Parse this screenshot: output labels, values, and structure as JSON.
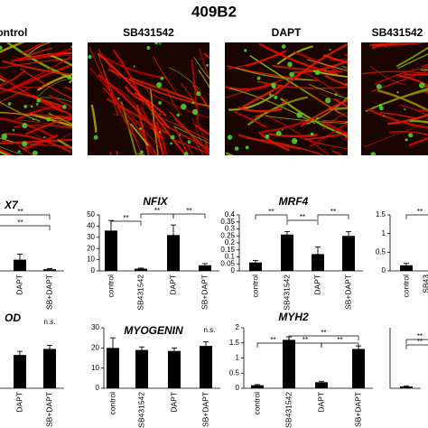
{
  "title": "409B2",
  "panels": [
    "control",
    "SB431542",
    "DAPT",
    "SB431542"
  ],
  "charts": [
    {
      "title": "X7",
      "title_color": "#2e75b6",
      "categories": [
        "DAPT",
        "SB+DAPT"
      ],
      "values": [
        0.2,
        0.03
      ],
      "errors": [
        0.1,
        0.01
      ],
      "ylim": [
        0,
        1
      ],
      "significance": [
        "**",
        "**"
      ]
    },
    {
      "title": "NFIX",
      "title_color": "#2e75b6",
      "categories": [
        "control",
        "SB431542",
        "DAPT",
        "SB+DAPT"
      ],
      "values": [
        36,
        2,
        32,
        5
      ],
      "errors": [
        9,
        0.5,
        9,
        1.5
      ],
      "ylim": [
        0,
        50
      ],
      "yticks": [
        0,
        10,
        20,
        30,
        40,
        50
      ],
      "significance": [
        "**",
        "**",
        "**"
      ]
    },
    {
      "title": "MRF4",
      "title_color": "#c00000",
      "categories": [
        "control",
        "SB431542",
        "DAPT",
        "SB+DAPT"
      ],
      "values": [
        0.06,
        0.26,
        0.12,
        0.25
      ],
      "errors": [
        0.015,
        0.02,
        0.05,
        0.03
      ],
      "ylim": [
        0,
        0.4
      ],
      "yticks": [
        0,
        0.05,
        0.1,
        0.15,
        0.2,
        0.25,
        0.3,
        0.35,
        0.4
      ],
      "significance": [
        "**",
        "**",
        "**"
      ]
    },
    {
      "categories": [
        "control",
        "SB43"
      ],
      "values": [
        0.15,
        0
      ],
      "errors": [
        0.05,
        0
      ],
      "ylim": [
        0,
        1.5
      ],
      "yticks": [
        0,
        0.5,
        1,
        1.5
      ],
      "significance": [
        "**"
      ]
    },
    {
      "title": "OD",
      "title_color": "#000000",
      "categories": [
        "DAPT",
        "SB+DAPT"
      ],
      "values": [
        0.55,
        0.65
      ],
      "errors": [
        0.06,
        0.06
      ],
      "ylim": [
        0,
        1
      ],
      "significance": [
        "n.s."
      ]
    },
    {
      "title": "MYOGENIN",
      "title_color": "#000000",
      "categories": [
        "control",
        "SB431542",
        "DAPT",
        "SB+DAPT"
      ],
      "values": [
        20,
        19,
        18.5,
        21
      ],
      "errors": [
        5,
        1.5,
        1.5,
        2
      ],
      "ylim": [
        0,
        30
      ],
      "yticks": [
        0,
        10,
        20,
        30
      ],
      "significance": [
        "n.s."
      ]
    },
    {
      "title": "MYH2",
      "title_color": "#c00000",
      "categories": [
        "control",
        "SB431542",
        "DAPT",
        "SB+DAPT"
      ],
      "values": [
        0.1,
        1.6,
        0.2,
        1.3
      ],
      "errors": [
        0.02,
        0.1,
        0.03,
        0.1
      ],
      "ylim": [
        0,
        2
      ],
      "yticks": [
        0,
        0.5,
        1,
        1.5,
        2
      ],
      "significance": [
        "**",
        "**",
        "**",
        "**"
      ]
    },
    {
      "values": [
        0.03
      ],
      "errors": [
        0.01
      ],
      "ylim": [
        0,
        1
      ],
      "significance": [
        "**",
        "**"
      ]
    }
  ]
}
